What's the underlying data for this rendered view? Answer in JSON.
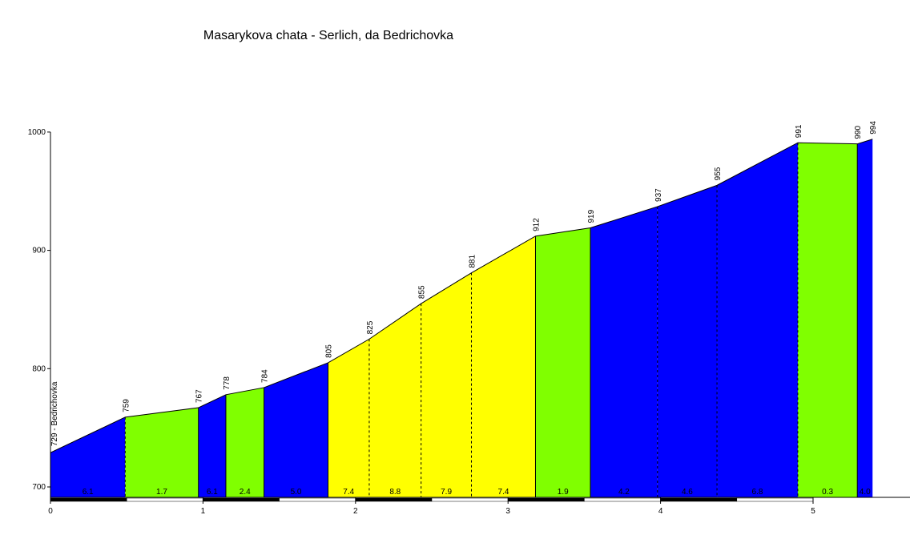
{
  "chart_data": {
    "type": "area",
    "title": "Masarykova chata - Serlich, da Bedrichovka",
    "xlabel": "",
    "ylabel": "",
    "xlim": [
      0,
      5.6
    ],
    "ylim": [
      700,
      1000
    ],
    "xticks": [
      0,
      1,
      2,
      3,
      4,
      5
    ],
    "yticks": [
      700,
      800,
      900,
      1000
    ],
    "start_label": "729 - Bedrichovka",
    "points": [
      {
        "x": 0.0,
        "y": 729,
        "label": ""
      },
      {
        "x": 0.49,
        "y": 759,
        "label": "759"
      },
      {
        "x": 0.97,
        "y": 767,
        "label": "767"
      },
      {
        "x": 1.15,
        "y": 778,
        "label": "778"
      },
      {
        "x": 1.4,
        "y": 784,
        "label": "784"
      },
      {
        "x": 1.82,
        "y": 805,
        "label": "805"
      },
      {
        "x": 2.09,
        "y": 825,
        "label": "825"
      },
      {
        "x": 2.43,
        "y": 855,
        "label": "855"
      },
      {
        "x": 2.76,
        "y": 881,
        "label": "881"
      },
      {
        "x": 3.18,
        "y": 912,
        "label": "912"
      },
      {
        "x": 3.54,
        "y": 919,
        "label": "919"
      },
      {
        "x": 3.98,
        "y": 937,
        "label": "937"
      },
      {
        "x": 4.37,
        "y": 955,
        "label": "955"
      },
      {
        "x": 4.9,
        "y": 991,
        "label": "991"
      },
      {
        "x": 5.29,
        "y": 990,
        "label": "990"
      },
      {
        "x": 5.39,
        "y": 994,
        "label": "994"
      }
    ],
    "segments": [
      {
        "gradient": "6.1",
        "color": "#0000ff"
      },
      {
        "gradient": "1.7",
        "color": "#80ff00"
      },
      {
        "gradient": "6.1",
        "color": "#0000ff"
      },
      {
        "gradient": "2.4",
        "color": "#80ff00"
      },
      {
        "gradient": "5.0",
        "color": "#0000ff"
      },
      {
        "gradient": "7.4",
        "color": "#ffff00"
      },
      {
        "gradient": "8.8",
        "color": "#ffff00"
      },
      {
        "gradient": "7.9",
        "color": "#ffff00"
      },
      {
        "gradient": "7.4",
        "color": "#ffff00"
      },
      {
        "gradient": "1.9",
        "color": "#80ff00"
      },
      {
        "gradient": "4.2",
        "color": "#0000ff"
      },
      {
        "gradient": "4.6",
        "color": "#0000ff"
      },
      {
        "gradient": "6.8",
        "color": "#0000ff"
      },
      {
        "gradient": "0.3",
        "color": "#80ff00"
      },
      {
        "gradient": "4.0",
        "color": "#0000ff"
      }
    ],
    "dashed_boundaries": [
      0.49,
      2.09,
      2.43,
      2.76,
      3.98,
      4.37,
      4.9
    ],
    "grid": false,
    "legend": "none"
  }
}
